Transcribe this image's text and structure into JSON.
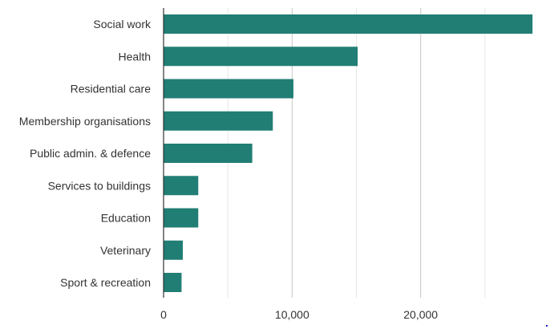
{
  "chart_data": {
    "type": "bar",
    "orientation": "horizontal",
    "categories": [
      "Social work",
      "Health",
      "Residential care",
      "Membership organisations",
      "Public admin. & defence",
      "Services to buildings",
      "Education",
      "Veterinary",
      "Sport & recreation"
    ],
    "values": [
      28700,
      15100,
      10100,
      8500,
      6900,
      2700,
      2700,
      1500,
      1400
    ],
    "xlim": [
      0,
      29000
    ],
    "xticks": [
      0,
      10000,
      20000
    ],
    "xtick_labels": [
      "0",
      "10,000",
      "20,000"
    ],
    "grid": true,
    "grid_step": 5000,
    "bar_color": "#217e74",
    "title": "",
    "xlabel": "",
    "ylabel": ""
  }
}
